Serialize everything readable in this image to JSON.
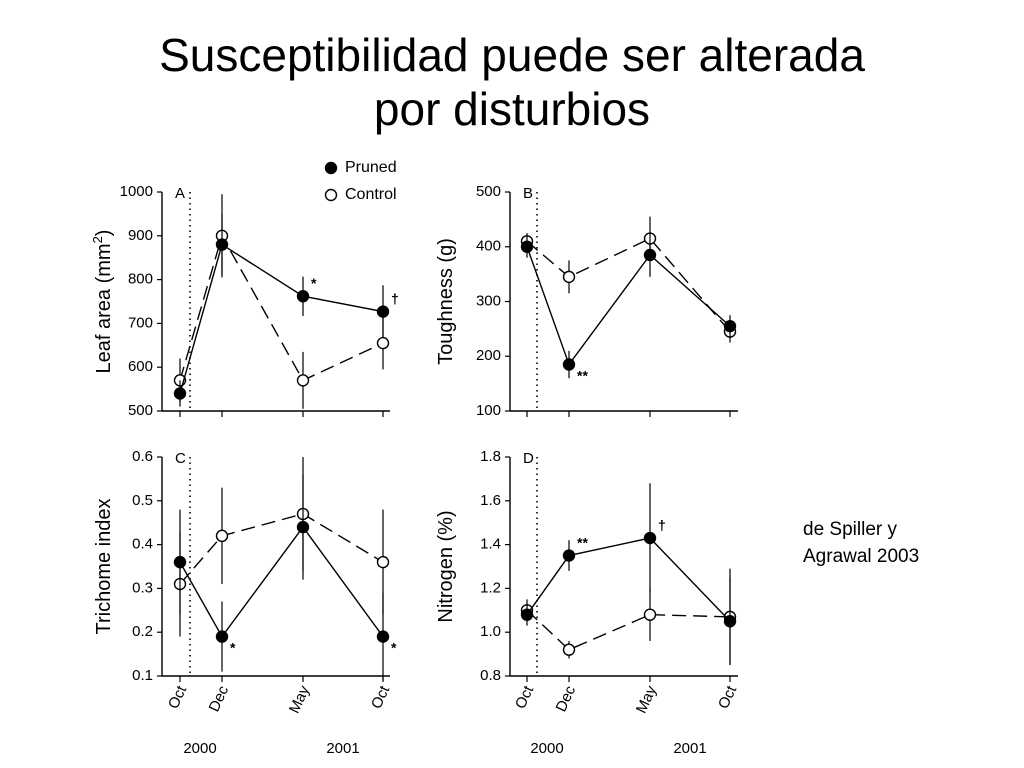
{
  "slide": {
    "title_line1": "Susceptibilidad puede ser alterada",
    "title_line2": "por disturbios",
    "credit_line1": "de Spiller y",
    "credit_line2": "Agrawal 2003"
  },
  "legend": [
    {
      "label": "Pruned",
      "marker": "filled"
    },
    {
      "label": "Control",
      "marker": "open"
    }
  ],
  "x_months": [
    "Oct",
    "Dec",
    "May",
    "Oct"
  ],
  "x_years": [
    "2000",
    "2001"
  ],
  "chart_data": [
    {
      "panel": "A",
      "type": "line",
      "ylabel": "Leaf area (mm",
      "ylabel_sup": "2",
      "ylabel_tail": ")",
      "ylim": [
        500,
        1000
      ],
      "yticks": [
        "500",
        "600",
        "700",
        "800",
        "900",
        "1000"
      ],
      "categories": [
        "Oct",
        "Dec",
        "May",
        "Oct"
      ],
      "series": [
        {
          "name": "Pruned",
          "values": [
            540,
            880,
            762,
            727
          ],
          "err": [
            30,
            70,
            45,
            60
          ]
        },
        {
          "name": "Control",
          "values": [
            570,
            900,
            570,
            655
          ],
          "err": [
            50,
            95,
            65,
            60
          ]
        }
      ],
      "annotations": [
        "",
        "",
        "*",
        "†"
      ],
      "annotation_series": "Pruned"
    },
    {
      "panel": "B",
      "type": "line",
      "ylabel": "Toughness (g)",
      "ylim": [
        100,
        500
      ],
      "yticks": [
        "100",
        "200",
        "300",
        "400",
        "500"
      ],
      "categories": [
        "Oct",
        "Dec",
        "May",
        "Oct"
      ],
      "series": [
        {
          "name": "Pruned",
          "values": [
            400,
            185,
            385,
            255
          ],
          "err": [
            20,
            25,
            40,
            20
          ]
        },
        {
          "name": "Control",
          "values": [
            410,
            345,
            415,
            245
          ],
          "err": [
            15,
            30,
            40,
            20
          ]
        }
      ],
      "annotations": [
        "",
        "**",
        "",
        ""
      ],
      "annotation_series": "Pruned"
    },
    {
      "panel": "C",
      "type": "line",
      "ylabel": "Trichome index",
      "ylim": [
        0.1,
        0.6
      ],
      "yticks": [
        "0.1",
        "0.2",
        "0.3",
        "0.4",
        "0.5",
        "0.6"
      ],
      "categories": [
        "Oct",
        "Dec",
        "May",
        "Oct"
      ],
      "series": [
        {
          "name": "Pruned",
          "values": [
            0.36,
            0.19,
            0.44,
            0.19
          ],
          "err": [
            0.12,
            0.08,
            0.12,
            0.1
          ]
        },
        {
          "name": "Control",
          "values": [
            0.31,
            0.42,
            0.47,
            0.36
          ],
          "err": [
            0.12,
            0.11,
            0.13,
            0.12
          ]
        }
      ],
      "annotations": [
        "",
        "*",
        "",
        "*"
      ],
      "annotation_series": "Pruned"
    },
    {
      "panel": "D",
      "type": "line",
      "ylabel": "Nitrogen (%)",
      "ylim": [
        0.8,
        1.8
      ],
      "yticks": [
        "0.8",
        "1.0",
        "1.2",
        "1.4",
        "1.6",
        "1.8"
      ],
      "categories": [
        "Oct",
        "Dec",
        "May",
        "Oct"
      ],
      "series": [
        {
          "name": "Pruned",
          "values": [
            1.08,
            1.35,
            1.43,
            1.05
          ],
          "err": [
            0.05,
            0.07,
            0.25,
            0.2
          ]
        },
        {
          "name": "Control",
          "values": [
            1.1,
            0.92,
            1.08,
            1.07
          ],
          "err": [
            0.05,
            0.04,
            0.12,
            0.22
          ]
        }
      ],
      "annotations": [
        "",
        "**",
        "†",
        ""
      ],
      "annotation_series": "Pruned"
    }
  ]
}
